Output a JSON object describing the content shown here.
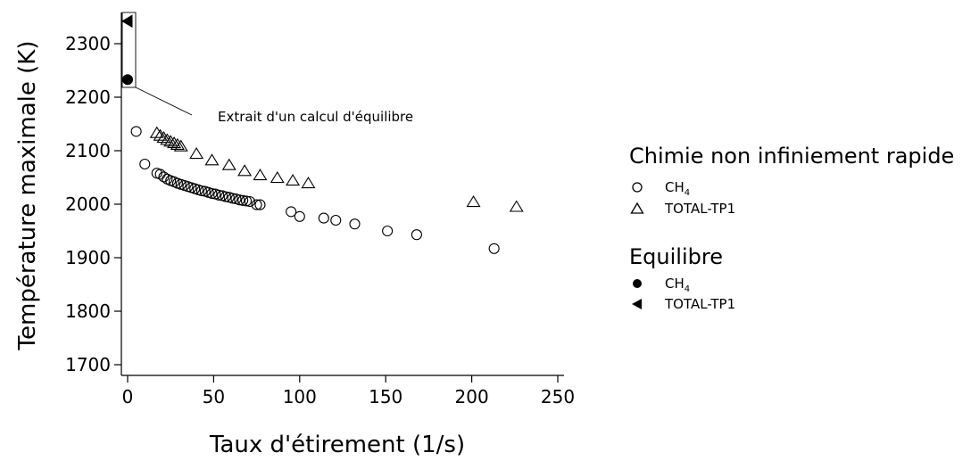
{
  "chart_data": {
    "type": "scatter",
    "xlabel": "Taux d'étirement (1/s)",
    "ylabel": "Température maximale (K)",
    "xlim": [
      -3,
      250
    ],
    "ylim": [
      1695,
      2355
    ],
    "xticks": [
      "0",
      "50",
      "100",
      "150",
      "200",
      "250"
    ],
    "yticks": [
      "1700",
      "1800",
      "1900",
      "2000",
      "2100",
      "2200",
      "2300"
    ],
    "xtick_values": [
      0,
      50,
      100,
      150,
      200,
      250
    ],
    "ytick_values": [
      1700,
      1800,
      1900,
      2000,
      2100,
      2200,
      2300
    ],
    "grid": false,
    "legend_position": "right",
    "annotation": "Extrait d'un calcul d'équilibre",
    "legend": {
      "groups": [
        {
          "title": "Chimie non infiniement rapide",
          "entries": [
            {
              "label_main": "CH",
              "label_sub": "4",
              "marker": "circle-open"
            },
            {
              "label_main": "TOTAL-TP1",
              "label_sub": "",
              "marker": "triangle-open"
            }
          ]
        },
        {
          "title": "Equilibre",
          "entries": [
            {
              "label_main": "CH",
              "label_sub": "4",
              "marker": "circle-filled"
            },
            {
              "label_main": "TOTAL-TP1",
              "label_sub": "",
              "marker": "triangle-left-filled"
            }
          ]
        }
      ]
    },
    "series": [
      {
        "marker": "circle-open",
        "points": [
          [
            5,
            2136
          ],
          [
            10,
            2075
          ],
          [
            17,
            2058
          ],
          [
            19,
            2056
          ],
          [
            21,
            2051
          ],
          [
            23,
            2047
          ],
          [
            25,
            2044
          ],
          [
            27,
            2042
          ],
          [
            29,
            2039
          ],
          [
            31,
            2037
          ],
          [
            33,
            2035
          ],
          [
            35,
            2033
          ],
          [
            37,
            2031
          ],
          [
            39,
            2029
          ],
          [
            41,
            2027
          ],
          [
            43,
            2025
          ],
          [
            45,
            2024
          ],
          [
            47,
            2022
          ],
          [
            49,
            2020
          ],
          [
            51,
            2019
          ],
          [
            53,
            2017
          ],
          [
            55,
            2016
          ],
          [
            57,
            2014
          ],
          [
            59,
            2013
          ],
          [
            61,
            2011
          ],
          [
            63,
            2010
          ],
          [
            65,
            2008
          ],
          [
            67,
            2007
          ],
          [
            69,
            2006
          ],
          [
            71,
            2005
          ],
          [
            75,
            1999
          ],
          [
            77,
            1999
          ],
          [
            95,
            1986
          ],
          [
            100,
            1977
          ],
          [
            114,
            1974
          ],
          [
            121,
            1970
          ],
          [
            132,
            1963
          ],
          [
            151,
            1950
          ],
          [
            168,
            1943
          ],
          [
            213,
            1917
          ]
        ]
      },
      {
        "marker": "triangle-open",
        "points": [
          [
            17,
            2133
          ],
          [
            19,
            2128
          ],
          [
            21,
            2124
          ],
          [
            23,
            2120
          ],
          [
            25,
            2117
          ],
          [
            27,
            2114
          ],
          [
            29,
            2111
          ],
          [
            31,
            2108
          ],
          [
            40,
            2094
          ],
          [
            49,
            2082
          ],
          [
            59,
            2073
          ],
          [
            68,
            2062
          ],
          [
            77,
            2054
          ],
          [
            87,
            2049
          ],
          [
            96,
            2044
          ],
          [
            105,
            2039
          ],
          [
            201,
            2004
          ],
          [
            226,
            1995
          ]
        ]
      },
      {
        "marker": "circle-filled",
        "points": [
          [
            0,
            2233
          ]
        ]
      },
      {
        "marker": "triangle-left-filled",
        "points": [
          [
            0,
            2342
          ]
        ]
      }
    ]
  }
}
